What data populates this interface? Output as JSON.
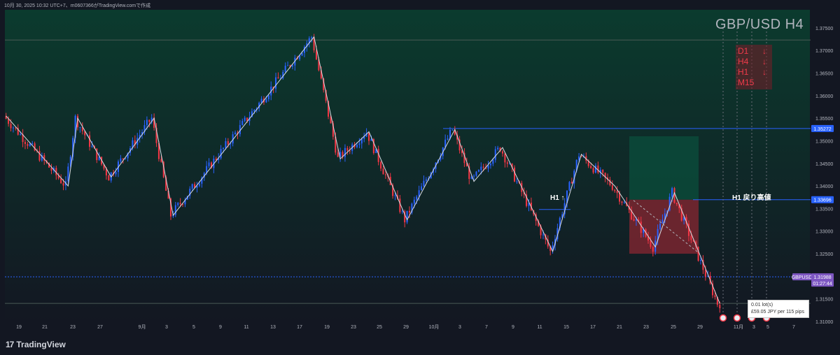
{
  "header": {
    "text": "10月 30, 2025 10:32 UTC+7、m0607366がTradingView.comで作成"
  },
  "brand": {
    "logo_mark": "17",
    "logo_text": "TradingView"
  },
  "title": "GBP/USD H4",
  "trend_box": {
    "rows": [
      {
        "label": "D1",
        "arrow": "↓"
      },
      {
        "label": "H4",
        "arrow": "↓"
      },
      {
        "label": "H1",
        "arrow": "↓"
      },
      {
        "label": "M15",
        "arrow": ""
      }
    ]
  },
  "annotations": {
    "h1_up": "H1 ↑",
    "h1_pullback": "H1 戻り高値"
  },
  "tooltip": {
    "line1": "0.01 lot(s)",
    "line2": "£59.05 JPY per 115 pips"
  },
  "colors": {
    "up": "#2962ff",
    "down": "#f23645",
    "bg_top": "#0b3b2e",
    "bg_bottom": "#131722"
  },
  "chart_data": {
    "type": "candlestick",
    "symbol": "GBPUSD",
    "timeframe": "H4",
    "ylim": [
      1.31,
      1.379
    ],
    "y_ticks": [
      1.375,
      1.37,
      1.365,
      1.36,
      1.355,
      1.35,
      1.345,
      1.34,
      1.335,
      1.33,
      1.325,
      1.315,
      1.31
    ],
    "x_ticks": [
      "19",
      "21",
      "23",
      "27",
      "9月",
      "3",
      "5",
      "9",
      "11",
      "13",
      "17",
      "19",
      "23",
      "25",
      "29",
      "10月",
      "3",
      "7",
      "9",
      "11",
      "15",
      "17",
      "21",
      "23",
      "25",
      "29",
      "11月",
      "3",
      "5",
      "7"
    ],
    "price_labels": [
      {
        "text": "1.35272",
        "value": 1.35272,
        "color": "#2962ff"
      },
      {
        "text": "1.33696",
        "value": 1.33696,
        "color": "#2962ff"
      },
      {
        "text": "GBPUSD",
        "value": 1.31988,
        "color": "#7e57c2"
      },
      {
        "text": "1.31988",
        "value": 1.31988,
        "color": "#7e57c2"
      },
      {
        "text": "01:27:44",
        "value": 1.31988,
        "color": "#7e57c2"
      }
    ],
    "levels": [
      {
        "name": "upper-level",
        "value": 1.3723,
        "color": "#4a5a55"
      },
      {
        "name": "h1-swing-high",
        "value": 1.35272,
        "color": "#2962ff"
      },
      {
        "name": "h1-pullback-high",
        "value": 1.33696,
        "color": "#2962ff"
      },
      {
        "name": "current-price",
        "value": 1.31988,
        "color": "#2962ff"
      },
      {
        "name": "lower-level",
        "value": 1.314,
        "color": "#4a5a55"
      }
    ],
    "zigzag": [
      [
        0,
        1.3555
      ],
      [
        26,
        1.34
      ],
      [
        30,
        1.355
      ],
      [
        44,
        1.342
      ],
      [
        62,
        1.355
      ],
      [
        70,
        1.3335
      ],
      [
        129,
        1.373
      ],
      [
        140,
        1.346
      ],
      [
        152,
        1.352
      ],
      [
        168,
        1.3325
      ],
      [
        188,
        1.3525
      ],
      [
        196,
        1.341
      ],
      [
        208,
        1.3485
      ],
      [
        229,
        1.3255
      ],
      [
        241,
        1.347
      ],
      [
        255,
        1.34
      ],
      [
        272,
        1.3265
      ],
      [
        280,
        1.3385
      ],
      [
        299,
        1.314
      ]
    ],
    "candles_summary": "≈300 four-hour candles from mid-August to 30 October 2025; swing high ≈1.3725 (mid-Sept), last close 1.31988",
    "zones": [
      {
        "name": "reward-zone",
        "from": 1.33696,
        "to": 1.351,
        "color": "#0b4a3a"
      },
      {
        "name": "risk-zone",
        "from": 1.325,
        "to": 1.33696,
        "color": "#7a2630"
      }
    ]
  }
}
